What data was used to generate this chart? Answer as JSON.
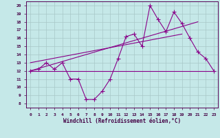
{
  "xlabel": "Windchill (Refroidissement éolien,°C)",
  "background_color": "#c5e8e8",
  "line_color": "#880088",
  "grid_color": "#a8c8c8",
  "xlim": [
    -0.5,
    23.5
  ],
  "ylim": [
    7.5,
    20.5
  ],
  "yticks": [
    8,
    9,
    10,
    11,
    12,
    13,
    14,
    15,
    16,
    17,
    18,
    19,
    20
  ],
  "xticks": [
    0,
    1,
    2,
    3,
    4,
    5,
    6,
    7,
    8,
    9,
    10,
    11,
    12,
    13,
    14,
    15,
    16,
    17,
    18,
    19,
    20,
    21,
    22,
    23
  ],
  "line1_x": [
    0,
    1,
    2,
    3,
    4,
    5,
    6,
    7,
    8,
    9,
    10,
    11,
    12,
    13,
    14,
    15,
    16,
    17,
    18,
    19,
    20,
    21,
    22,
    23
  ],
  "line1_y": [
    12,
    12.2,
    13,
    12.2,
    13,
    11,
    11,
    8.5,
    8.5,
    9.5,
    11,
    13.5,
    16.2,
    16.5,
    15,
    20,
    18.3,
    16.8,
    19.2,
    17.8,
    16,
    14.3,
    13.5,
    12
  ],
  "line2_x": [
    0,
    23
  ],
  "line2_y": [
    12,
    12
  ],
  "line3_x": [
    0,
    21
  ],
  "line3_y": [
    12,
    18
  ],
  "line4_x": [
    0,
    19
  ],
  "line4_y": [
    13,
    16.5
  ],
  "marker": "P",
  "marker_size": 3,
  "linewidth": 0.8
}
